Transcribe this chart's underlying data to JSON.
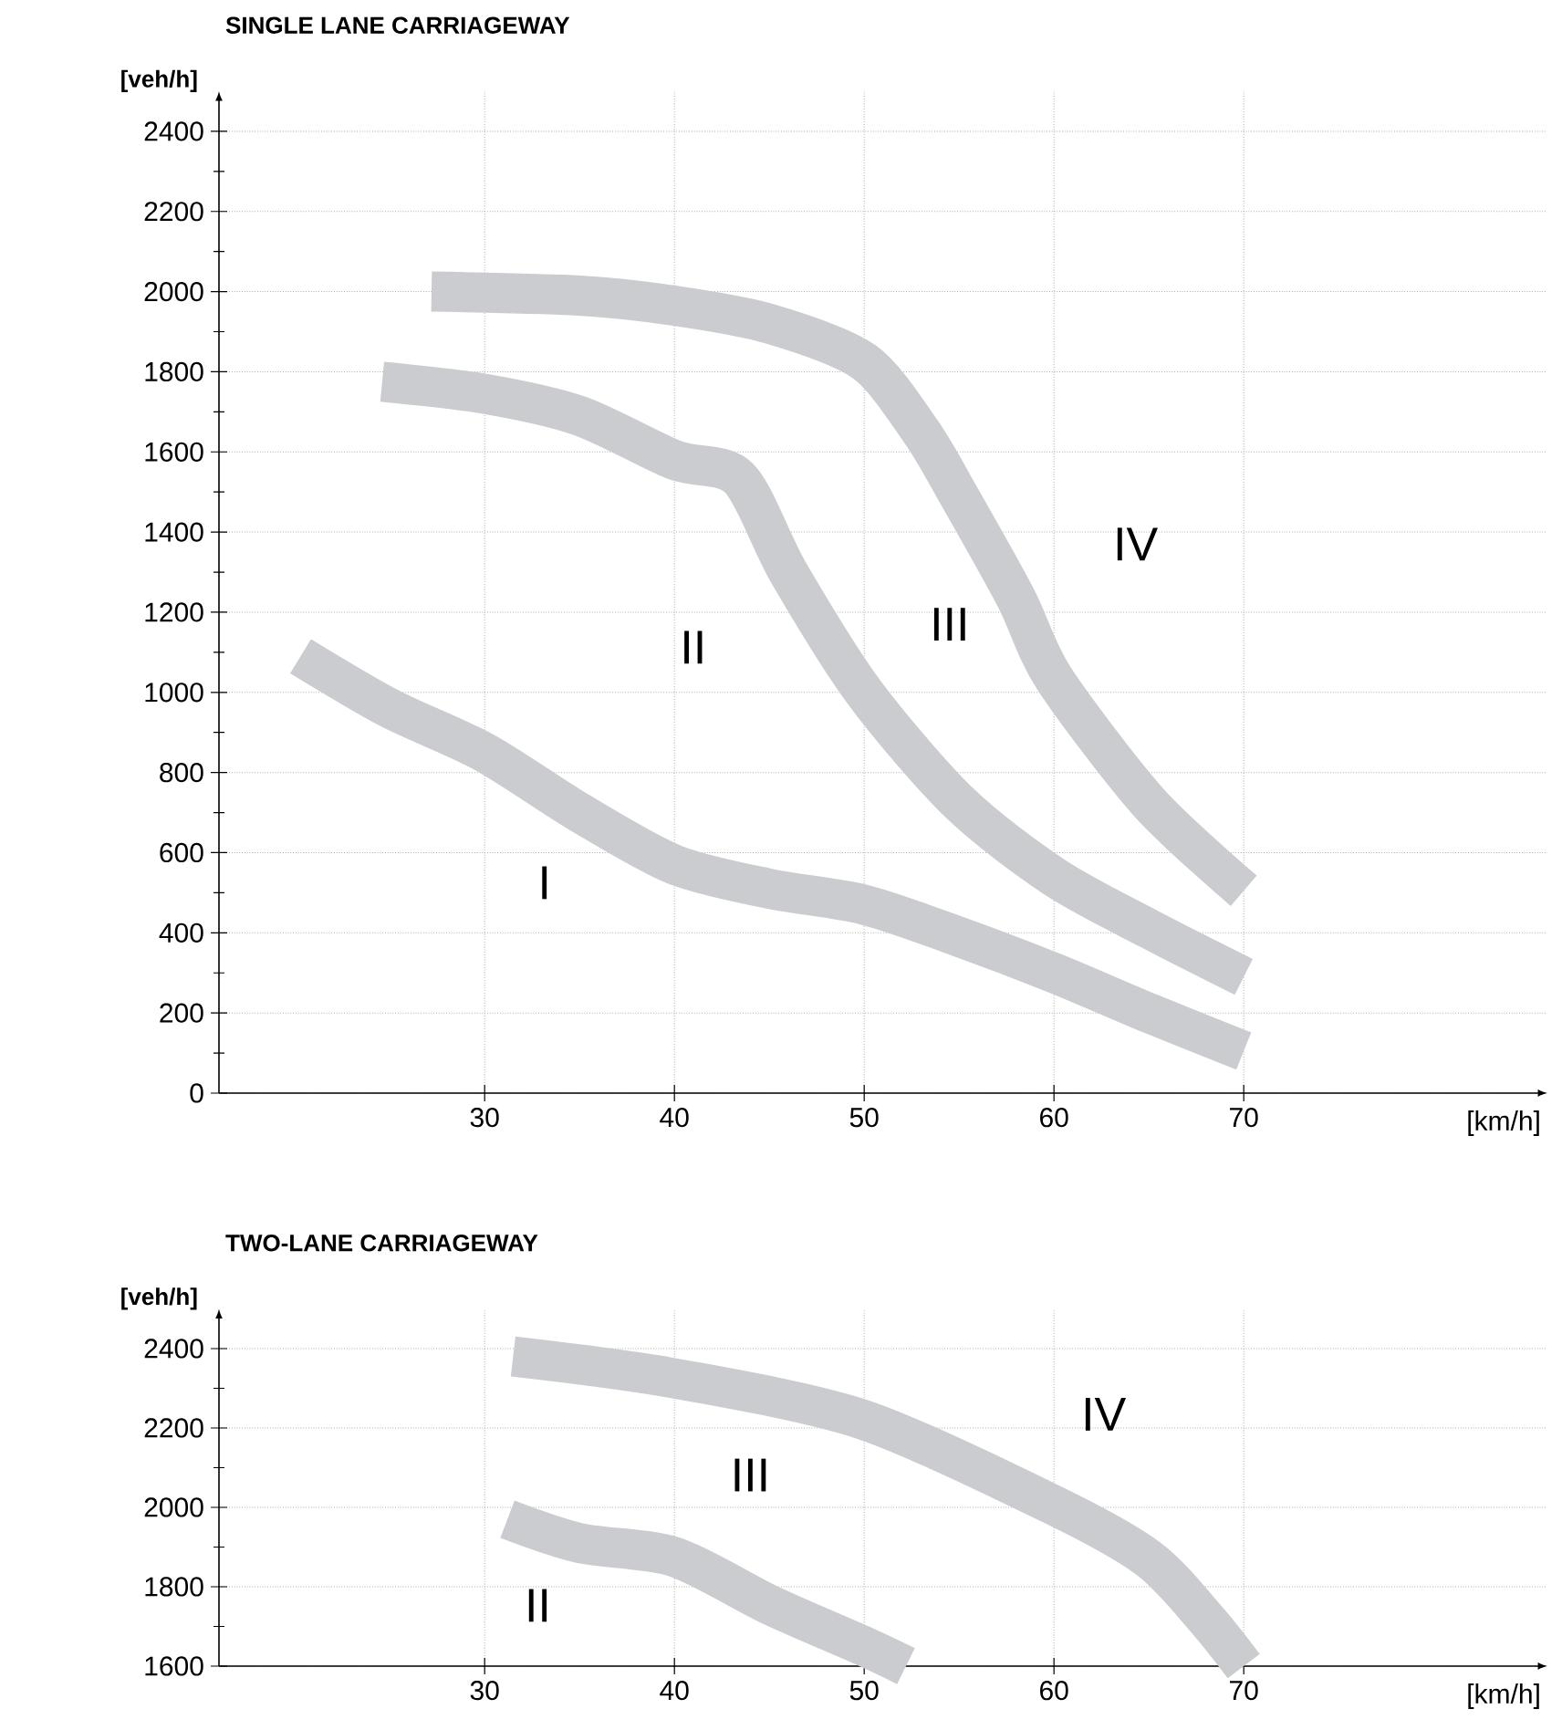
{
  "chart_data": [
    {
      "type": "line",
      "title": "SINGLE LANE CARRIAGEWAY",
      "xlabel": "[km/h]",
      "ylabel": "[veh/h]",
      "xlim": [
        16,
        86
      ],
      "ylim": [
        0,
        2500
      ],
      "xticks": [
        30,
        40,
        50,
        60,
        70
      ],
      "yticks": [
        0,
        {
          "value": 100,
          "label": null
        },
        200,
        {
          "value": 300,
          "label": null
        },
        400,
        {
          "value": 500,
          "label": null
        },
        600,
        {
          "value": 700,
          "label": null
        },
        800,
        {
          "value": 900,
          "label": null
        },
        1000,
        {
          "value": 1100,
          "label": null
        },
        1200,
        {
          "value": 1300,
          "label": null
        },
        1400,
        {
          "value": 1500,
          "label": null
        },
        1600,
        {
          "value": 1700,
          "label": null
        },
        1800,
        {
          "value": 1900,
          "label": null
        },
        2000,
        {
          "value": 2100,
          "label": null
        },
        2200,
        {
          "value": 2300,
          "label": null
        },
        2400
      ],
      "grid": true,
      "series": [
        {
          "color": "#cbccd0",
          "x": [
            20.3,
            25,
            30,
            35,
            40,
            45,
            50,
            55,
            60,
            65,
            70
          ],
          "values": [
            1090,
            960,
            850,
            700,
            570,
            510,
            470,
            390,
            300,
            200,
            105
          ]
        },
        {
          "color": "#cbccd0",
          "x": [
            24.6,
            30,
            35,
            40,
            43.4,
            46,
            50,
            55,
            60,
            65,
            70
          ],
          "values": [
            1775,
            1745,
            1690,
            1580,
            1535,
            1300,
            1000,
            725,
            540,
            410,
            290
          ]
        },
        {
          "color": "#cbccd0",
          "x": [
            27.2,
            35,
            40,
            45,
            50,
            53,
            55,
            58,
            60,
            65,
            70
          ],
          "values": [
            2000,
            1990,
            1965,
            1920,
            1825,
            1650,
            1490,
            1235,
            1035,
            725,
            505
          ]
        }
      ],
      "annotations": [
        "I",
        "II",
        "III",
        "IV"
      ]
    },
    {
      "type": "line",
      "title": "TWO-LANE CARRIAGEWAY",
      "xlabel": "[km/h]",
      "ylabel": "[veh/h]",
      "xlim": [
        16,
        86
      ],
      "ylim": [
        1600,
        2500
      ],
      "xticks": [
        30,
        40,
        50,
        60,
        70
      ],
      "yticks": [
        1600,
        {
          "value": 1700,
          "label": null
        },
        1800,
        {
          "value": 1900,
          "label": null
        },
        2000,
        {
          "value": 2100,
          "label": null
        },
        2200,
        {
          "value": 2300,
          "label": null
        },
        2400
      ],
      "grid": true,
      "series": [
        {
          "color": "#cbccd0",
          "x": [
            31.2,
            35,
            40,
            45,
            50,
            52.2
          ],
          "values": [
            1970,
            1910,
            1875,
            1755,
            1650,
            1600
          ]
        },
        {
          "color": "#cbccd0",
          "x": [
            31.5,
            40,
            50,
            60,
            65,
            68,
            70
          ],
          "values": [
            2380,
            2325,
            2220,
            2005,
            1870,
            1720,
            1600
          ]
        }
      ],
      "annotations": [
        "II",
        "III",
        "IV"
      ]
    }
  ]
}
